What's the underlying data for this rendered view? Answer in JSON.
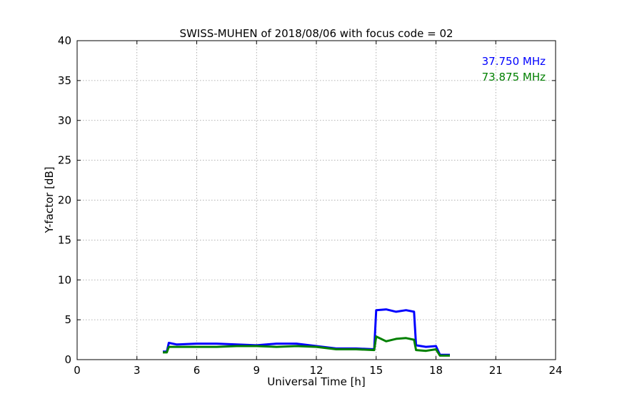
{
  "chart_data": {
    "type": "line",
    "title": "SWISS-MUHEN of 2018/08/06 with focus code = 02",
    "xlabel": "Universal Time [h]",
    "ylabel": "Y-factor [dB]",
    "xlim": [
      0,
      24
    ],
    "ylim": [
      0,
      40
    ],
    "xticks": [
      0,
      3,
      6,
      9,
      12,
      15,
      18,
      21,
      24
    ],
    "yticks": [
      0,
      5,
      10,
      15,
      20,
      25,
      30,
      35,
      40
    ],
    "grid": true,
    "legend_position": "top-right",
    "series": [
      {
        "name": "37.750 MHz",
        "color": "#0000ff",
        "x": [
          4.3,
          4.5,
          4.6,
          5.0,
          6.0,
          7.0,
          8.0,
          9.0,
          10.0,
          11.0,
          12.0,
          13.0,
          14.0,
          14.9,
          15.0,
          15.5,
          16.0,
          16.5,
          16.9,
          17.0,
          17.5,
          18.0,
          18.2,
          18.7
        ],
        "y": [
          1.0,
          1.0,
          2.1,
          1.9,
          2.0,
          2.0,
          1.9,
          1.8,
          2.0,
          2.0,
          1.7,
          1.4,
          1.4,
          1.3,
          6.2,
          6.3,
          6.0,
          6.2,
          6.0,
          1.8,
          1.6,
          1.7,
          0.6,
          0.6
        ]
      },
      {
        "name": "73.875 MHz",
        "color": "#008000",
        "x": [
          4.3,
          4.5,
          4.6,
          5.0,
          6.0,
          7.0,
          8.0,
          9.0,
          10.0,
          11.0,
          12.0,
          13.0,
          14.0,
          14.9,
          15.0,
          15.5,
          16.0,
          16.5,
          16.9,
          17.0,
          17.5,
          18.0,
          18.2,
          18.7
        ],
        "y": [
          0.9,
          0.9,
          1.6,
          1.6,
          1.6,
          1.6,
          1.7,
          1.7,
          1.6,
          1.7,
          1.6,
          1.3,
          1.3,
          1.2,
          2.9,
          2.3,
          2.6,
          2.7,
          2.5,
          1.2,
          1.1,
          1.3,
          0.5,
          0.5
        ]
      }
    ]
  }
}
